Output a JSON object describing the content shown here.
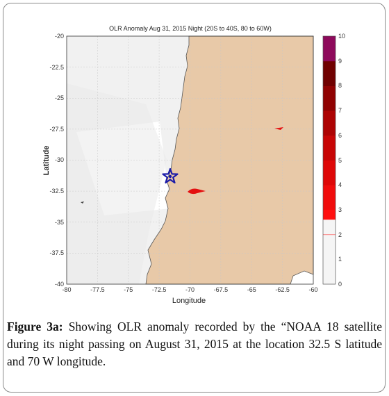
{
  "figure": {
    "title": "OLR Anomaly Aug 31, 2015 Night (20S to 40S, 80 to 60W)",
    "xlabel": "Longitude",
    "ylabel": "Latitude",
    "x_ticks": [
      "-80",
      "-77.5",
      "-75",
      "-72.5",
      "-70",
      "-67.5",
      "-65",
      "-62.5",
      "-60"
    ],
    "y_ticks": [
      "-20",
      "-22.5",
      "-25",
      "-27.5",
      "-30",
      "-32.5",
      "-35",
      "-37.5",
      "-40"
    ],
    "colorbar_ticks": [
      "10",
      "9",
      "8",
      "7",
      "6",
      "5",
      "4",
      "3",
      "2",
      "1",
      "0"
    ],
    "colors": {
      "land": "#e8c9a8",
      "ocean": "#ffffff",
      "low_anomaly_shade": "#f0f0f0",
      "anomaly_red": "#e41010",
      "marker": "#1a1aa8",
      "colorbar": [
        "#f5f5f5",
        "#f5f5f5",
        "#ff1010",
        "#f00c0c",
        "#de0808",
        "#c70505",
        "#ad0303",
        "#900202",
        "#700101",
        "#4a0000",
        "#8e0a5c"
      ]
    },
    "marker": {
      "icon": "star",
      "lon": -71.5,
      "lat": -31.2
    },
    "anomaly_regions": [
      {
        "lon": -70.0,
        "lat": -32.5,
        "value": 3.5
      },
      {
        "lon": -62.5,
        "lat": -27.5,
        "value": 3.2
      }
    ]
  },
  "caption": {
    "label": "Figure 3a:",
    "text": "Showing OLR anomaly recorded by the “NOAA 18 satellite during its night passing on August 31, 2015 at the location 32.5 S latitude and 70 W longitude."
  }
}
